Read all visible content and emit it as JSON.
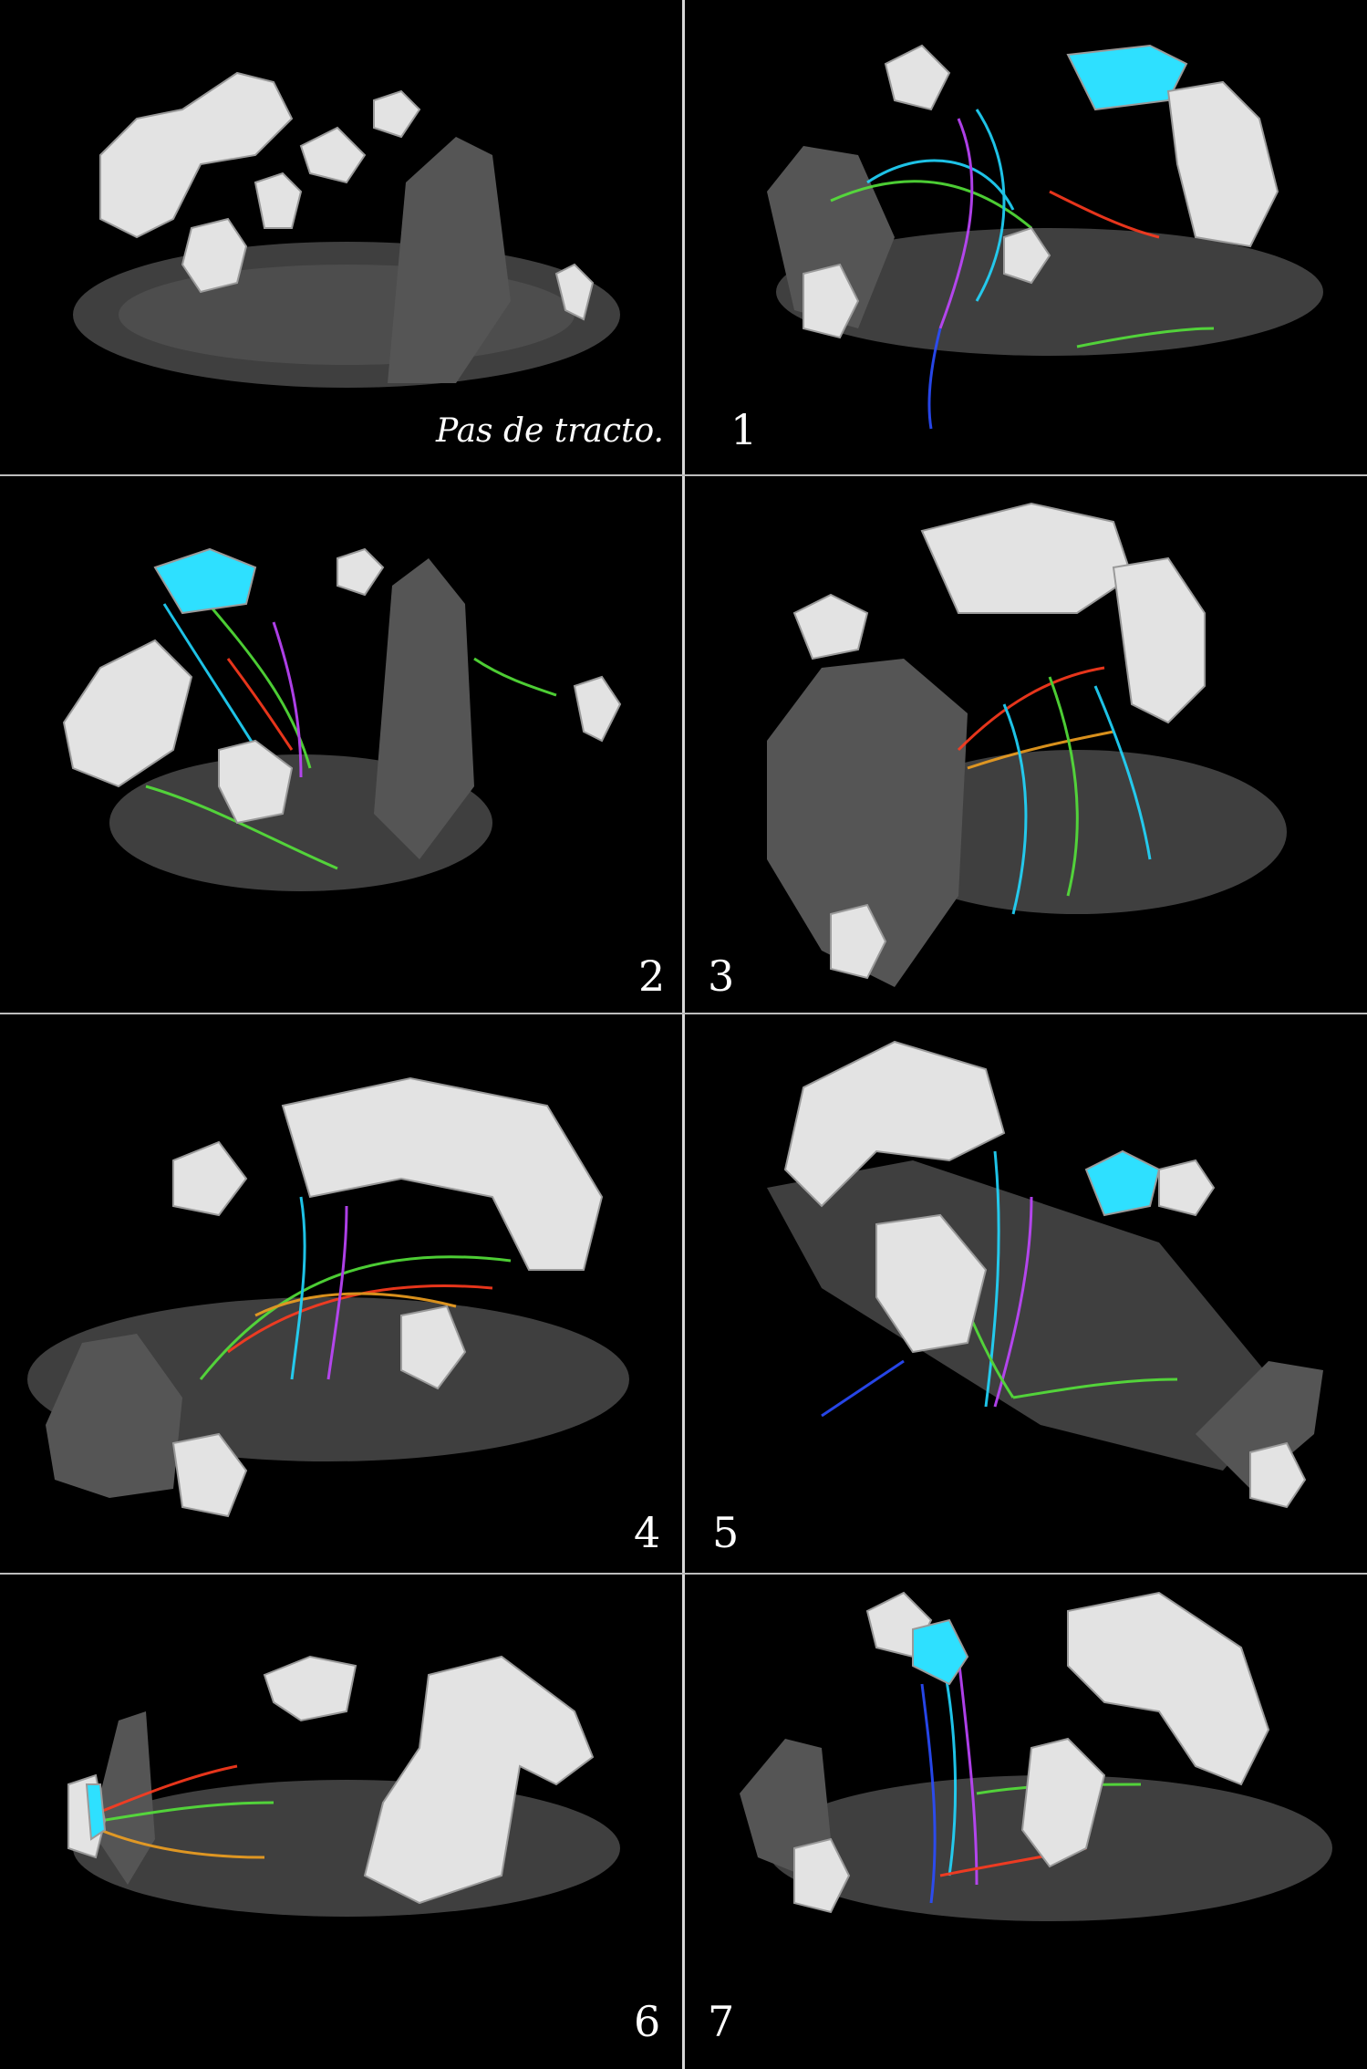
{
  "panels": [
    {
      "id": "p0",
      "caption": "Pas de tracto.",
      "number": ""
    },
    {
      "id": "p1",
      "caption": "",
      "number": "1"
    },
    {
      "id": "p2",
      "caption": "",
      "number": "2"
    },
    {
      "id": "p3",
      "caption": "",
      "number": "3"
    },
    {
      "id": "p4",
      "caption": "",
      "number": "4"
    },
    {
      "id": "p5",
      "caption": "",
      "number": "5"
    },
    {
      "id": "p6",
      "caption": "",
      "number": "6"
    },
    {
      "id": "p7",
      "caption": "",
      "number": "7"
    }
  ],
  "colors": {
    "background": "#000000",
    "brain_slice": "#4a4a4a",
    "roi_mesh": "#e6e6e6",
    "tract_red": "#ff3b1f",
    "tract_green": "#55e33a",
    "tract_blue": "#2a4dff",
    "tract_cyan": "#22d8ff",
    "tract_magenta": "#c046ff",
    "divider": "#d8d8d8"
  }
}
